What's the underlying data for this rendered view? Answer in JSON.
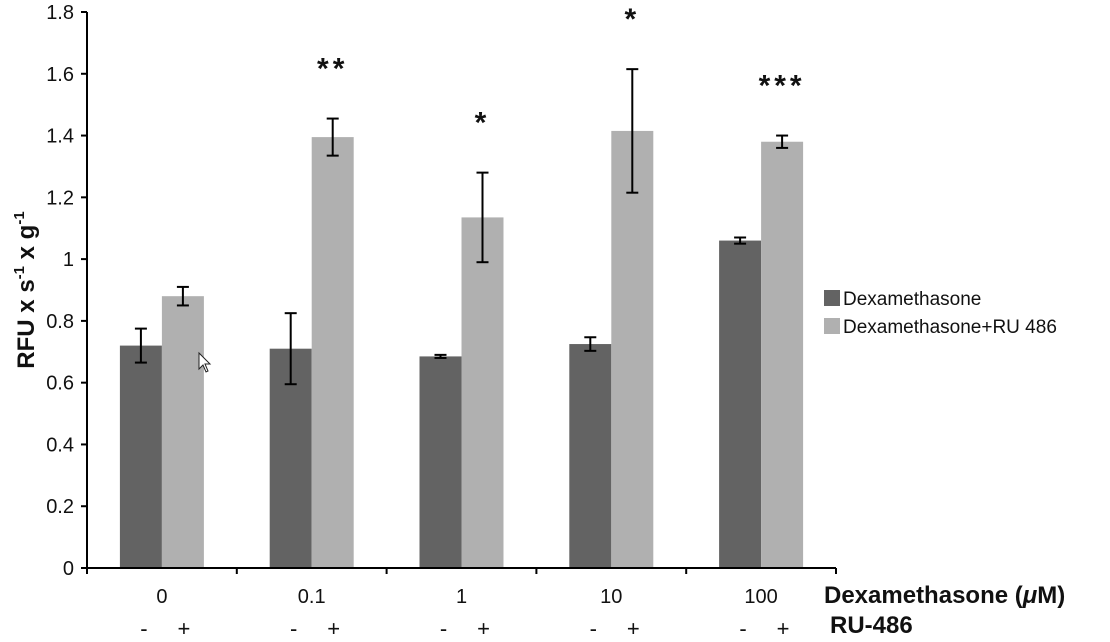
{
  "chart_data": {
    "type": "bar",
    "title": "",
    "ylabel": "RFU x s-1 x g-1",
    "ylabel_parts": {
      "base1": "RFU x s",
      "sup1": "-1",
      "base2": " x g",
      "sup2": "-1"
    },
    "xlabel": "Dexamethasone (μM)",
    "xlabel_parts": {
      "pre": "Dexamethasone (",
      "mu": "μ",
      "post": "M)"
    },
    "second_row_label": "RU-486",
    "ylim": [
      0,
      1.8
    ],
    "yticks": [
      "0",
      "0.2",
      "0.4",
      "0.6",
      "0.8",
      "1",
      "1.2",
      "1.4",
      "1.6",
      "1.8"
    ],
    "ytick_values": [
      0,
      0.2,
      0.4,
      0.6,
      0.8,
      1.0,
      1.2,
      1.4,
      1.6,
      1.8
    ],
    "categories": [
      "0",
      "0.1",
      "1",
      "10",
      "100"
    ],
    "ru486_markers": [
      [
        "-",
        "+"
      ],
      [
        "-",
        "+"
      ],
      [
        "-",
        "+"
      ],
      [
        "-",
        "+"
      ],
      [
        "-",
        "+"
      ]
    ],
    "grid": false,
    "legend_position": "right",
    "series": [
      {
        "name": "Dexamethasone",
        "color": "#636363",
        "values": [
          0.72,
          0.71,
          0.685,
          0.725,
          1.06
        ],
        "errors": [
          0.055,
          0.115,
          0.005,
          0.022,
          0.01
        ]
      },
      {
        "name": "Dexamethasone+RU 486",
        "color": "#b0b0b0",
        "values": [
          0.88,
          1.395,
          1.135,
          1.415,
          1.38
        ],
        "errors": [
          0.03,
          0.06,
          0.145,
          0.2,
          0.02
        ]
      }
    ],
    "significance": [
      "",
      "**",
      "*",
      "*",
      "***"
    ]
  }
}
